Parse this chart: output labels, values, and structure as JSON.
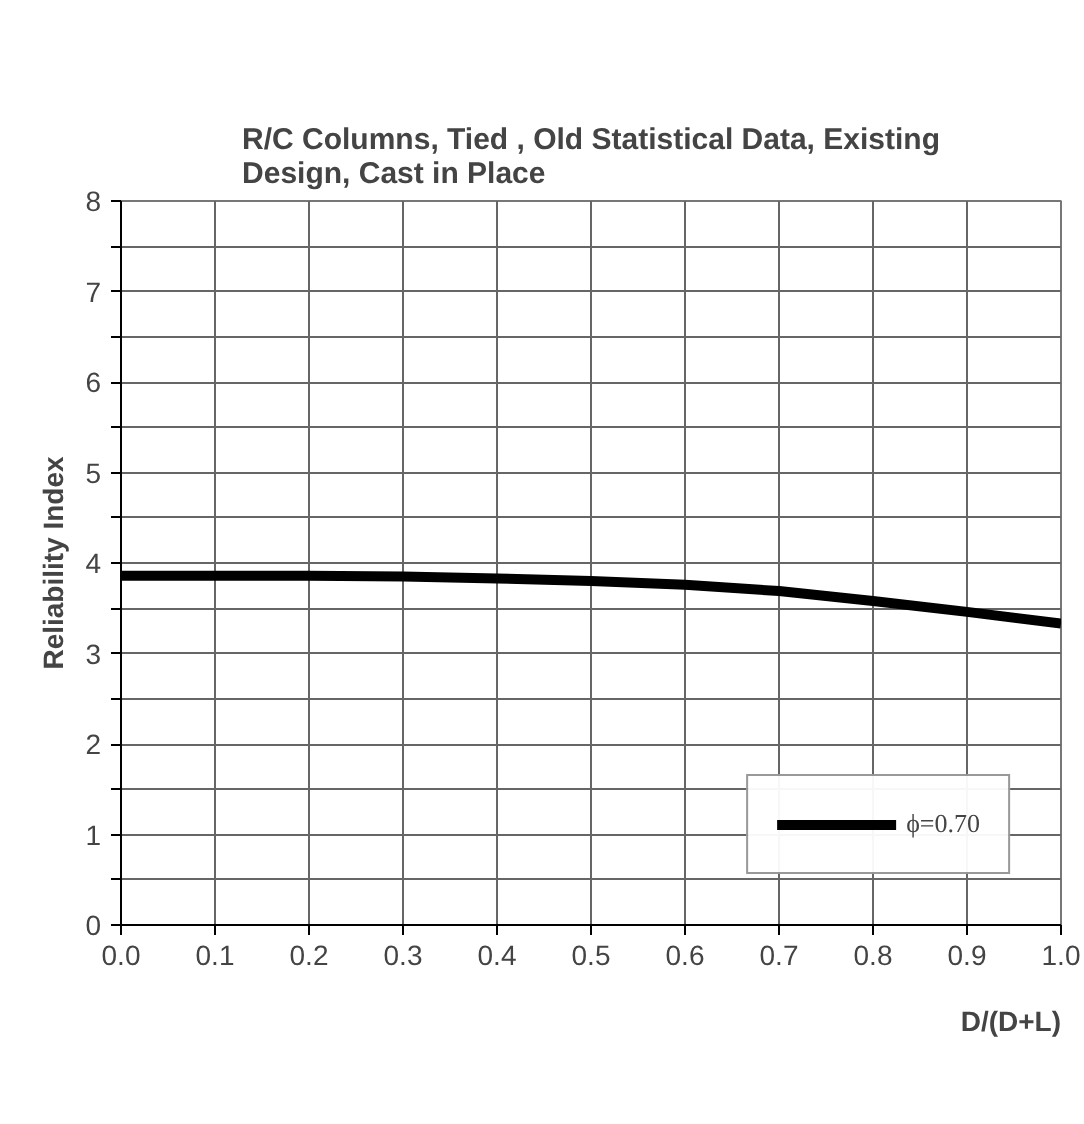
{
  "chart_data": {
    "type": "line",
    "title": "R/C Columns, Tied , Old Statistical Data, Existing\nDesign, Cast in Place",
    "xlabel": "D/(D+L)",
    "ylabel": "Reliability Index",
    "x": [
      0.0,
      0.1,
      0.2,
      0.3,
      0.4,
      0.5,
      0.6,
      0.7,
      0.8,
      0.9,
      1.0
    ],
    "series": [
      {
        "name": "ϕ=0.70",
        "color": "#000000",
        "values": [
          3.86,
          3.86,
          3.86,
          3.85,
          3.83,
          3.8,
          3.76,
          3.69,
          3.58,
          3.46,
          3.33
        ]
      }
    ],
    "xlim": [
      0,
      1
    ],
    "ylim": [
      0,
      8
    ],
    "xticks": [
      {
        "value": 0,
        "label": "0.0"
      },
      0.1,
      0.2,
      0.3,
      0.4,
      0.5,
      0.6,
      0.7,
      0.8,
      0.9,
      {
        "value": 1,
        "label": "1.0"
      }
    ],
    "yticks": [
      0,
      {
        "value": 0.5,
        "label": null
      },
      1,
      {
        "value": 1.5,
        "label": null
      },
      2,
      {
        "value": 2.5,
        "label": null
      },
      3,
      {
        "value": 3.5,
        "label": null
      },
      4,
      {
        "value": 4.5,
        "label": null
      },
      5,
      {
        "value": 5.5,
        "label": null
      },
      6,
      {
        "value": 6.5,
        "label": null
      },
      7,
      {
        "value": 7.5,
        "label": null
      },
      8
    ],
    "grid": true,
    "legend": "bottom right",
    "marker": "none",
    "line_style": "solid"
  }
}
